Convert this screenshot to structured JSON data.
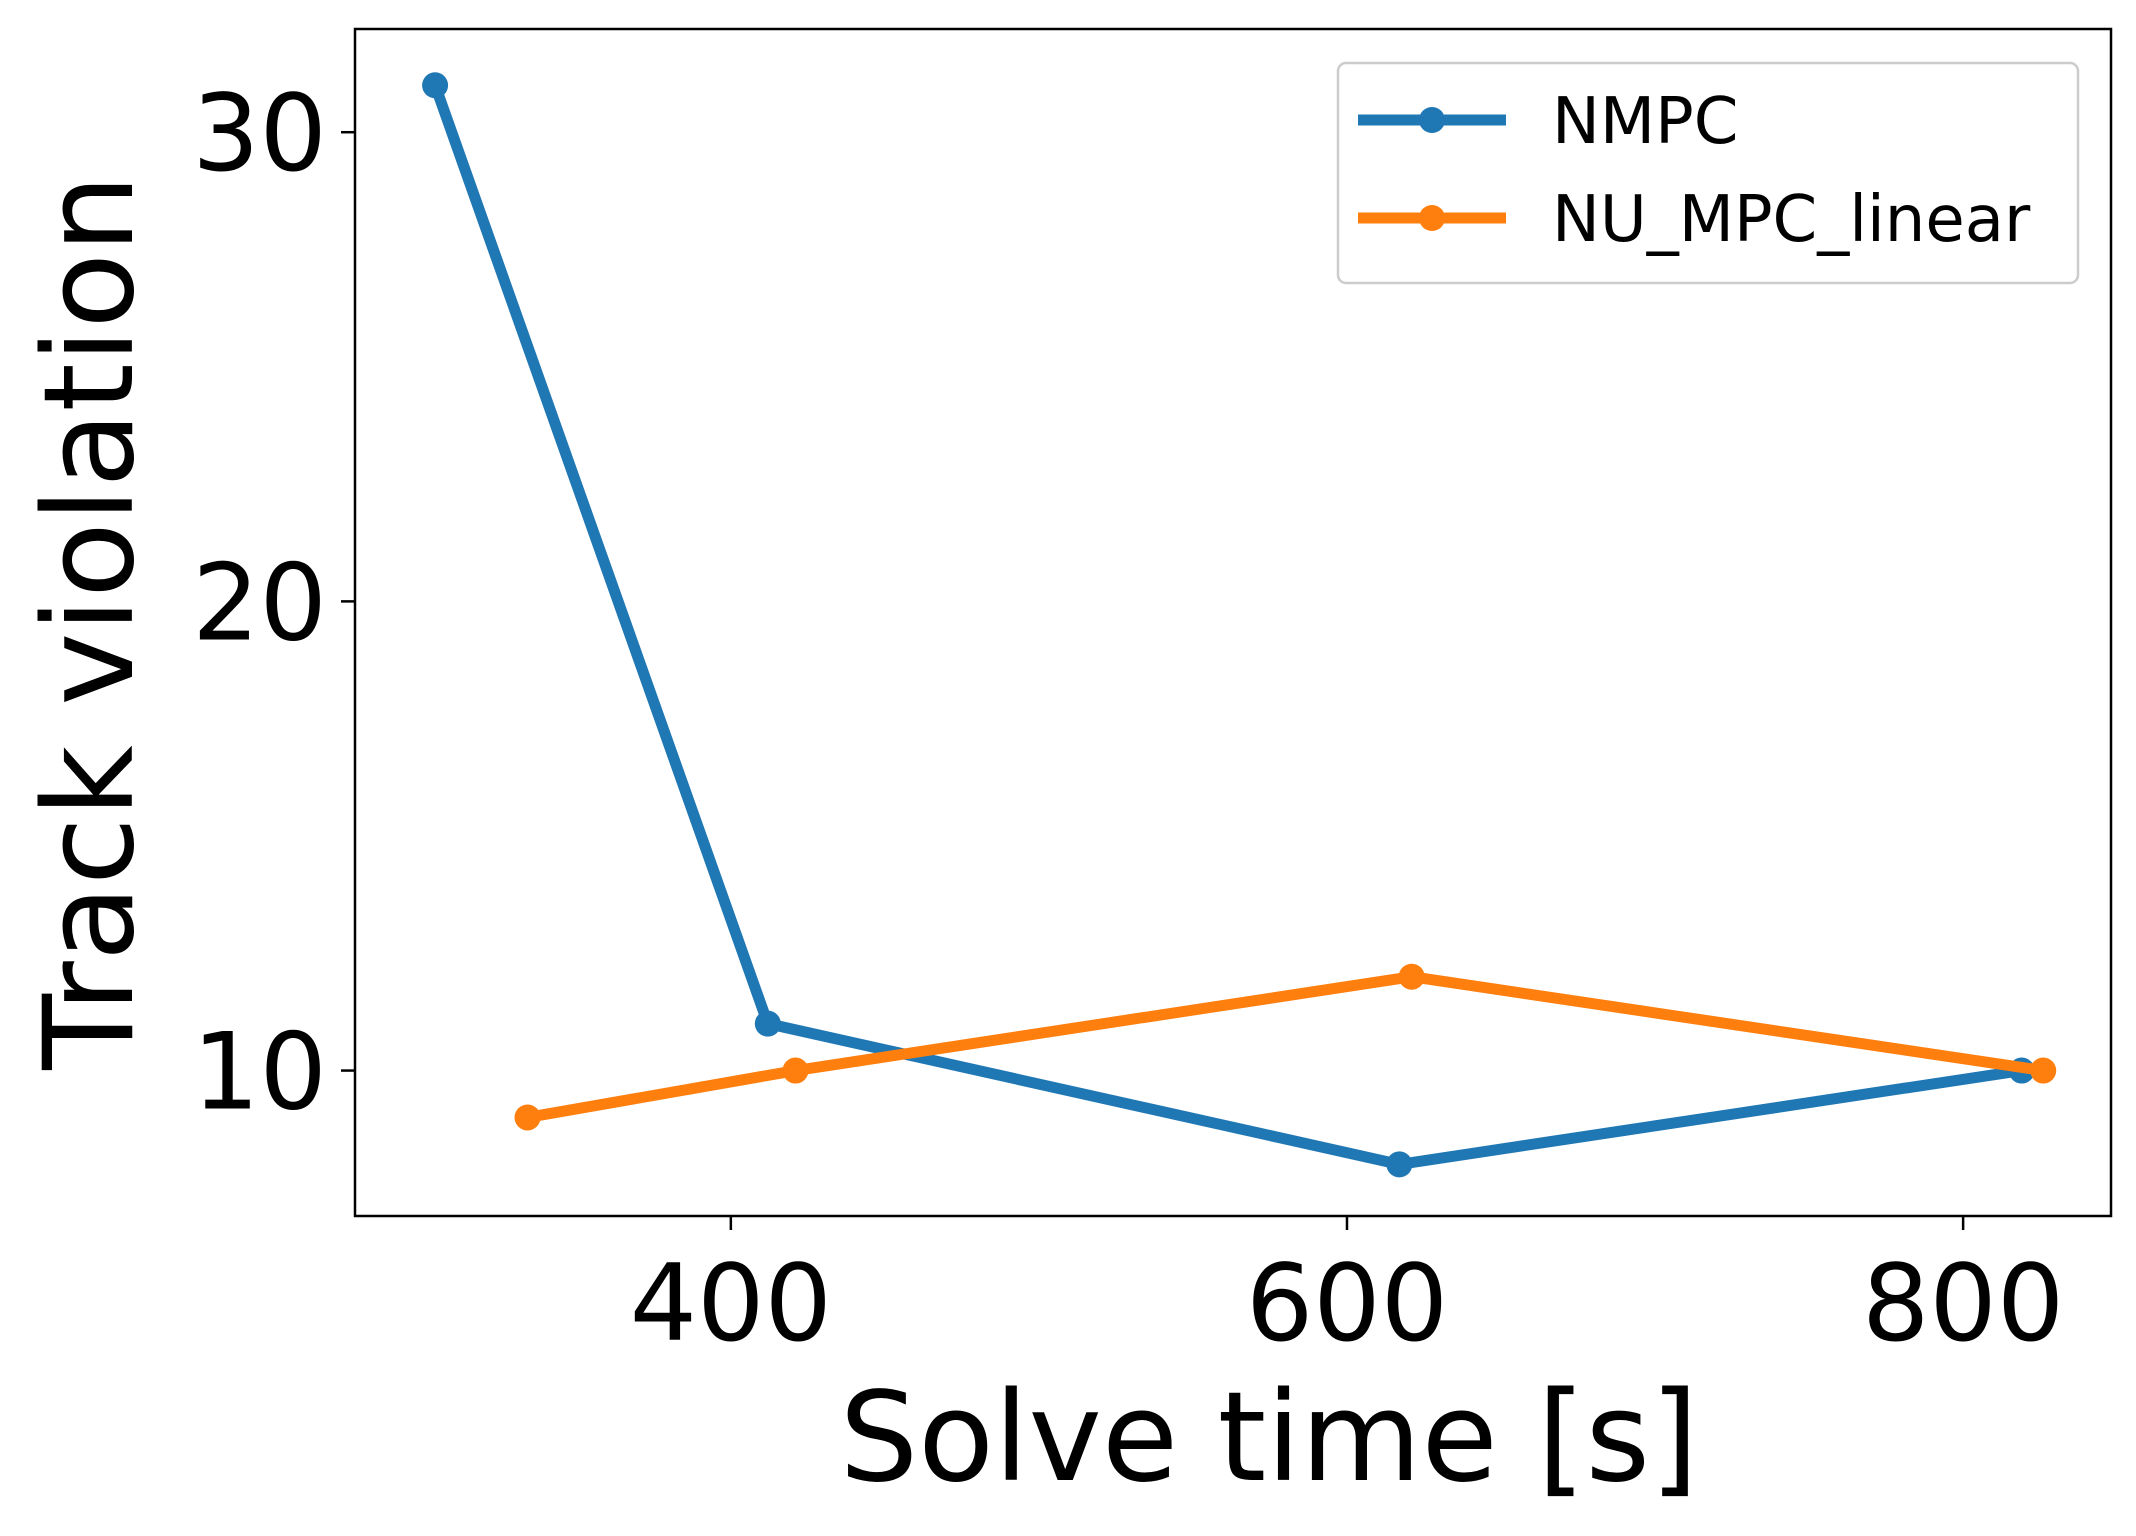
{
  "chart_data": {
    "type": "line",
    "title": "",
    "xlabel": "Solve time [s]",
    "ylabel": "Track violation",
    "xlim": [
      278,
      848
    ],
    "ylim": [
      6.9,
      32.2
    ],
    "xticks": [
      400,
      600,
      800
    ],
    "yticks": [
      10,
      20,
      30
    ],
    "xtick_labels": [
      "400",
      "600",
      "800"
    ],
    "ytick_labels": [
      "10",
      "20",
      "30"
    ],
    "grid": false,
    "legend_position": "top-right",
    "series": [
      {
        "name": "NMPC",
        "color": "#1f77b4",
        "marker": "circle",
        "x": [
          304,
          412,
          617,
          819
        ],
        "y": [
          31.0,
          11.0,
          8.0,
          10.0
        ]
      },
      {
        "name": "NU_MPC_linear",
        "color": "#ff7f0e",
        "marker": "circle",
        "x": [
          334,
          421,
          621,
          826
        ],
        "y": [
          9.0,
          10.0,
          12.0,
          10.0
        ]
      }
    ]
  }
}
